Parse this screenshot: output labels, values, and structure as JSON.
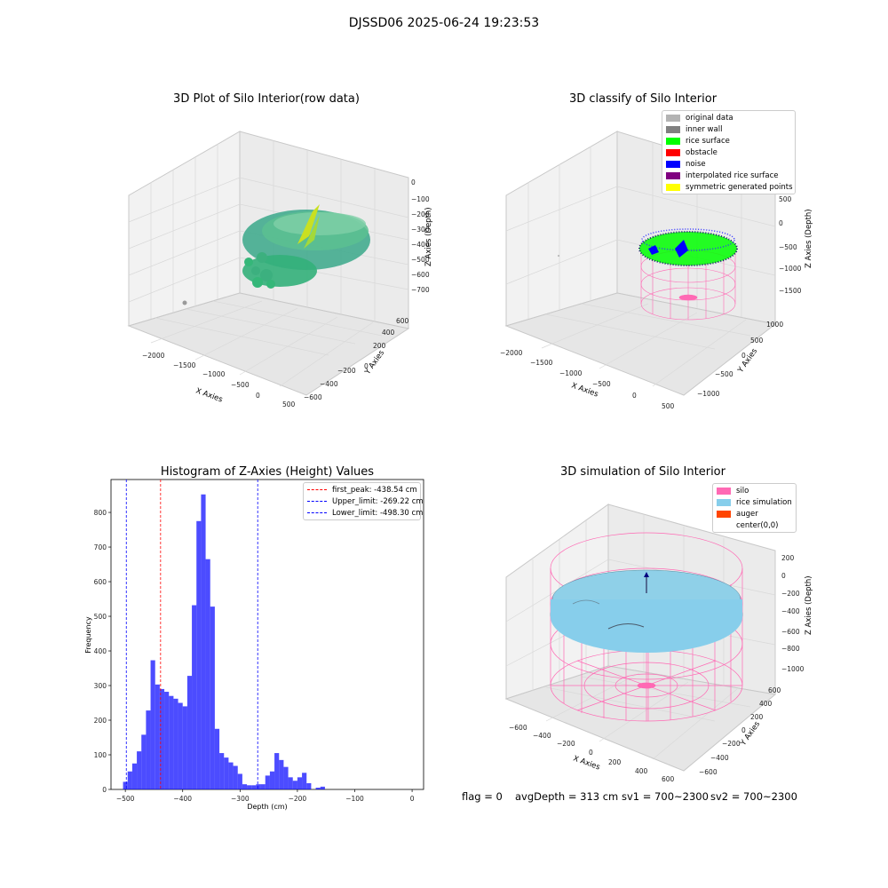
{
  "suptitle": "DJSSD06 2025-06-24 19:23:53",
  "footer": {
    "flag": "flag = 0",
    "avg": "avgDepth = 313 cm",
    "sv1": "sv1 = 700~2300",
    "sv2": "sv2 = 700~2300"
  },
  "panels": {
    "raw": {
      "title": "3D Plot of Silo Interior(row data)",
      "x_label": "X Axies",
      "y_label": "Y Axies",
      "z_label": "Z Axies (Depth)",
      "x_ticks": [
        "−2000",
        "−1500",
        "−1000",
        "−500",
        "0",
        "500"
      ],
      "y_ticks": [
        "−600",
        "−400",
        "−200",
        "0",
        "200",
        "400",
        "600"
      ],
      "z_ticks": [
        "0",
        "−100",
        "−200",
        "−300",
        "−400",
        "−500",
        "−600",
        "−700"
      ],
      "colors": {
        "low": "#22a884",
        "mid": "#35b779",
        "high": "#d9e021"
      }
    },
    "classify": {
      "title": "3D classify of Silo Interior",
      "x_label": "X Axies",
      "y_label": "Y Axies",
      "z_label": "Z Axies (Depth)",
      "x_ticks": [
        "−2000",
        "−1500",
        "−1000",
        "−500",
        "0",
        "500"
      ],
      "y_ticks": [
        "−1000",
        "−500",
        "0",
        "500",
        "1000"
      ],
      "z_ticks": [
        "500",
        "0",
        "−500",
        "−1000",
        "−1500"
      ],
      "legend": [
        {
          "label": "original data",
          "color": "#b3b3b3"
        },
        {
          "label": "inner wall",
          "color": "#808080"
        },
        {
          "label": "rice surface",
          "color": "#00ff00"
        },
        {
          "label": "obstacle",
          "color": "#ff0000"
        },
        {
          "label": "noise",
          "color": "#0000ff"
        },
        {
          "label": "interpolated rice surface",
          "color": "#800080"
        },
        {
          "label": "symmetric generated points",
          "color": "#ffff00"
        }
      ]
    },
    "simulation": {
      "title": "3D simulation of Silo Interior",
      "x_label": "X Axies",
      "y_label": "Y Axies",
      "z_label": "Z Axies (Depth)",
      "x_ticks": [
        "−600",
        "−400",
        "−200",
        "0",
        "200",
        "400",
        "600"
      ],
      "y_ticks": [
        "−600",
        "−400",
        "−200",
        "0",
        "200",
        "400",
        "600"
      ],
      "z_ticks": [
        "200",
        "0",
        "−200",
        "−400",
        "−600",
        "−800",
        "−1000"
      ],
      "legend": [
        {
          "label": "silo",
          "color": "#ff69b4"
        },
        {
          "label": "rice simulation",
          "color": "#87ceeb"
        },
        {
          "label": "auger",
          "color": "#ff4500"
        },
        {
          "label": "center(0,0)",
          "color": "#ffffff"
        }
      ]
    }
  },
  "chart_data": {
    "type": "bar",
    "title": "Histogram of Z-Axies (Height) Values",
    "xlabel": "Depth (cm)",
    "ylabel": "Frequency",
    "xlim": [
      -525,
      20
    ],
    "ylim": [
      0,
      895
    ],
    "x_ticks": [
      -500,
      -400,
      -300,
      -200,
      -100,
      0
    ],
    "x_tick_labels": [
      "−500",
      "−400",
      "−300",
      "−200",
      "−100",
      "0"
    ],
    "y_ticks": [
      0,
      100,
      200,
      300,
      400,
      500,
      600,
      700,
      800
    ],
    "bar_color": "#0000ff",
    "bar_alpha": 0.7,
    "bins": [
      {
        "start": -504,
        "end": -496,
        "count": 22
      },
      {
        "start": -496,
        "end": -488,
        "count": 52
      },
      {
        "start": -488,
        "end": -480,
        "count": 75
      },
      {
        "start": -480,
        "end": -472,
        "count": 110
      },
      {
        "start": -472,
        "end": -464,
        "count": 158
      },
      {
        "start": -464,
        "end": -456,
        "count": 228
      },
      {
        "start": -456,
        "end": -448,
        "count": 373
      },
      {
        "start": -448,
        "end": -440,
        "count": 303
      },
      {
        "start": -440,
        "end": -432,
        "count": 290
      },
      {
        "start": -432,
        "end": -424,
        "count": 282
      },
      {
        "start": -424,
        "end": -416,
        "count": 270
      },
      {
        "start": -416,
        "end": -408,
        "count": 262
      },
      {
        "start": -408,
        "end": -400,
        "count": 250
      },
      {
        "start": -400,
        "end": -392,
        "count": 240
      },
      {
        "start": -392,
        "end": -384,
        "count": 328
      },
      {
        "start": -384,
        "end": -376,
        "count": 532
      },
      {
        "start": -376,
        "end": -368,
        "count": 775
      },
      {
        "start": -368,
        "end": -360,
        "count": 852
      },
      {
        "start": -360,
        "end": -352,
        "count": 665
      },
      {
        "start": -352,
        "end": -344,
        "count": 528
      },
      {
        "start": -344,
        "end": -336,
        "count": 175
      },
      {
        "start": -336,
        "end": -328,
        "count": 105
      },
      {
        "start": -328,
        "end": -320,
        "count": 92
      },
      {
        "start": -320,
        "end": -312,
        "count": 78
      },
      {
        "start": -312,
        "end": -304,
        "count": 68
      },
      {
        "start": -304,
        "end": -296,
        "count": 45
      },
      {
        "start": -296,
        "end": -288,
        "count": 15
      },
      {
        "start": -288,
        "end": -280,
        "count": 12
      },
      {
        "start": -280,
        "end": -272,
        "count": 12
      },
      {
        "start": -272,
        "end": -264,
        "count": 15
      },
      {
        "start": -264,
        "end": -256,
        "count": 15
      },
      {
        "start": -256,
        "end": -248,
        "count": 40
      },
      {
        "start": -248,
        "end": -240,
        "count": 52
      },
      {
        "start": -240,
        "end": -232,
        "count": 105
      },
      {
        "start": -232,
        "end": -224,
        "count": 85
      },
      {
        "start": -224,
        "end": -216,
        "count": 65
      },
      {
        "start": -216,
        "end": -208,
        "count": 35
      },
      {
        "start": -208,
        "end": -200,
        "count": 25
      },
      {
        "start": -200,
        "end": -192,
        "count": 35
      },
      {
        "start": -192,
        "end": -184,
        "count": 48
      },
      {
        "start": -184,
        "end": -176,
        "count": 18
      },
      {
        "start": -176,
        "end": -168,
        "count": 0
      },
      {
        "start": -168,
        "end": -160,
        "count": 5
      },
      {
        "start": -160,
        "end": -152,
        "count": 8
      }
    ],
    "vlines": [
      {
        "x": -438.54,
        "color": "#ff0000",
        "label": "first_peak: -438.54 cm"
      },
      {
        "x": -269.22,
        "color": "#0000ff",
        "label": "Upper_limit: -269.22 cm"
      },
      {
        "x": -498.3,
        "color": "#0000ff",
        "label": "Lower_limit: -498.30 cm"
      }
    ],
    "legend_position": "top-right"
  }
}
